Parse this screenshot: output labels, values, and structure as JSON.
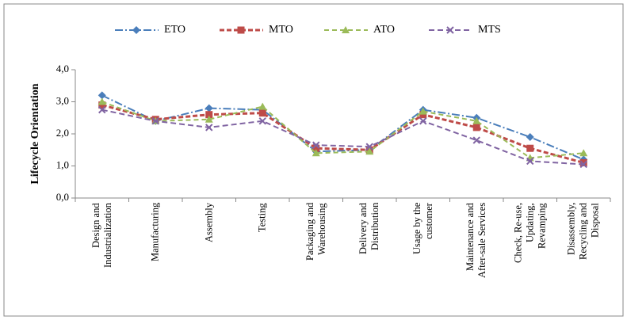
{
  "chart_data": {
    "type": "line",
    "y_label": "Lifecycle Orientation",
    "categories": [
      "Design and Industrialization",
      "Manufacturing",
      "Assembly",
      "Testing",
      "Packaging and Warehousing",
      "Delivery and Distribution",
      "Usage by the customer",
      "Maintenance and After-sale Services",
      "Check, Re-use, Updating, Revamping",
      "Disassembly, Recycling and Disposal"
    ],
    "series": [
      {
        "name": "ETO",
        "color": "#4a7ebb",
        "marker": "diamond",
        "dash": "10 3 2 3",
        "values": [
          3.2,
          2.4,
          2.8,
          2.75,
          1.45,
          1.5,
          2.75,
          2.5,
          1.9,
          1.2
        ]
      },
      {
        "name": "MTO",
        "color": "#be4b48",
        "marker": "square",
        "dash": "6 3",
        "values": [
          2.9,
          2.45,
          2.6,
          2.65,
          1.55,
          1.5,
          2.6,
          2.2,
          1.55,
          1.1
        ]
      },
      {
        "name": "ATO",
        "color": "#9bbb59",
        "marker": "triangle",
        "dash": "6 4",
        "values": [
          3.0,
          2.4,
          2.45,
          2.85,
          1.4,
          1.45,
          2.7,
          2.4,
          1.25,
          1.4
        ]
      },
      {
        "name": "MTS",
        "color": "#8064a2",
        "marker": "x",
        "dash": "7 4",
        "values": [
          2.75,
          2.4,
          2.2,
          2.4,
          1.65,
          1.6,
          2.4,
          1.8,
          1.15,
          1.05
        ]
      }
    ],
    "ylim": [
      0,
      4
    ],
    "yticks": [
      {
        "value": 0,
        "label": "0,0"
      },
      {
        "value": 1,
        "label": "1,0"
      },
      {
        "value": 2,
        "label": "2,0"
      },
      {
        "value": 3,
        "label": "3,0"
      },
      {
        "value": 4,
        "label": "4,0"
      }
    ],
    "legend": "top"
  }
}
